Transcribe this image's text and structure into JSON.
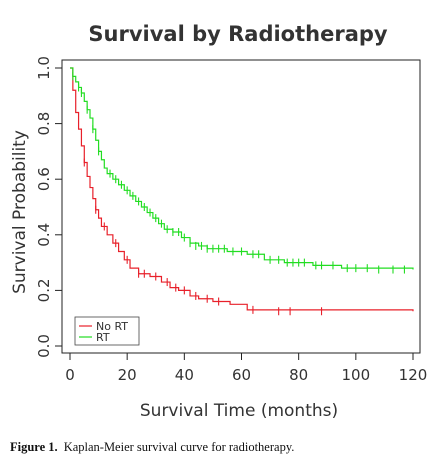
{
  "chart_data": {
    "type": "line",
    "title": "Survival by Radiotherapy",
    "xlabel": "Survival Time (months)",
    "ylabel": "Survival Probability",
    "xlim": [
      0,
      120
    ],
    "ylim": [
      0,
      1.0
    ],
    "x_ticks": [
      "0",
      "20",
      "40",
      "60",
      "80",
      "100",
      "120"
    ],
    "y_ticks": [
      "0.0",
      "0.2",
      "0.4",
      "0.6",
      "0.8",
      "1.0"
    ],
    "grid": false,
    "legend_position": "bottom-left",
    "series": [
      {
        "name": "No RT",
        "color": "#e8202a",
        "steps": [
          [
            0,
            1.0
          ],
          [
            1,
            0.92
          ],
          [
            2,
            0.84
          ],
          [
            3,
            0.78
          ],
          [
            4,
            0.72
          ],
          [
            5,
            0.66
          ],
          [
            6,
            0.61
          ],
          [
            7,
            0.57
          ],
          [
            8,
            0.53
          ],
          [
            9,
            0.49
          ],
          [
            10,
            0.46
          ],
          [
            11,
            0.43
          ],
          [
            13,
            0.4
          ],
          [
            15,
            0.37
          ],
          [
            17,
            0.34
          ],
          [
            19,
            0.31
          ],
          [
            21,
            0.28
          ],
          [
            24,
            0.26
          ],
          [
            28,
            0.25
          ],
          [
            32,
            0.23
          ],
          [
            35,
            0.21
          ],
          [
            38,
            0.2
          ],
          [
            42,
            0.18
          ],
          [
            45,
            0.17
          ],
          [
            50,
            0.16
          ],
          [
            56,
            0.15
          ],
          [
            62,
            0.13
          ],
          [
            120,
            0.125
          ]
        ],
        "censor": [
          [
            5,
            0.66
          ],
          [
            9,
            0.49
          ],
          [
            12,
            0.43
          ],
          [
            16,
            0.37
          ],
          [
            20,
            0.31
          ],
          [
            24,
            0.26
          ],
          [
            26,
            0.26
          ],
          [
            30,
            0.25
          ],
          [
            34,
            0.23
          ],
          [
            37,
            0.21
          ],
          [
            40,
            0.2
          ],
          [
            44,
            0.18
          ],
          [
            48,
            0.17
          ],
          [
            52,
            0.16
          ],
          [
            64,
            0.13
          ],
          [
            73,
            0.125
          ],
          [
            77,
            0.125
          ],
          [
            88,
            0.125
          ]
        ]
      },
      {
        "name": "RT",
        "color": "#22dd22",
        "steps": [
          [
            0,
            1.0
          ],
          [
            1,
            0.97
          ],
          [
            2,
            0.95
          ],
          [
            3,
            0.93
          ],
          [
            4,
            0.91
          ],
          [
            5,
            0.88
          ],
          [
            6,
            0.85
          ],
          [
            7,
            0.82
          ],
          [
            8,
            0.78
          ],
          [
            9,
            0.74
          ],
          [
            10,
            0.7
          ],
          [
            11,
            0.67
          ],
          [
            12,
            0.64
          ],
          [
            13,
            0.62
          ],
          [
            15,
            0.6
          ],
          [
            17,
            0.58
          ],
          [
            19,
            0.56
          ],
          [
            21,
            0.54
          ],
          [
            23,
            0.52
          ],
          [
            25,
            0.5
          ],
          [
            27,
            0.48
          ],
          [
            29,
            0.46
          ],
          [
            31,
            0.44
          ],
          [
            33,
            0.42
          ],
          [
            36,
            0.41
          ],
          [
            39,
            0.39
          ],
          [
            42,
            0.37
          ],
          [
            45,
            0.36
          ],
          [
            48,
            0.35
          ],
          [
            55,
            0.34
          ],
          [
            62,
            0.33
          ],
          [
            68,
            0.31
          ],
          [
            75,
            0.3
          ],
          [
            85,
            0.29
          ],
          [
            95,
            0.28
          ],
          [
            120,
            0.275
          ]
        ],
        "censor": [
          [
            1,
            0.97
          ],
          [
            3,
            0.93
          ],
          [
            4,
            0.91
          ],
          [
            6,
            0.85
          ],
          [
            8,
            0.78
          ],
          [
            10,
            0.7
          ],
          [
            14,
            0.62
          ],
          [
            16,
            0.6
          ],
          [
            18,
            0.58
          ],
          [
            20,
            0.56
          ],
          [
            22,
            0.54
          ],
          [
            24,
            0.52
          ],
          [
            26,
            0.5
          ],
          [
            28,
            0.48
          ],
          [
            30,
            0.46
          ],
          [
            32,
            0.44
          ],
          [
            34,
            0.42
          ],
          [
            36,
            0.41
          ],
          [
            38,
            0.41
          ],
          [
            40,
            0.39
          ],
          [
            42,
            0.37
          ],
          [
            44,
            0.36
          ],
          [
            46,
            0.36
          ],
          [
            48,
            0.35
          ],
          [
            50,
            0.35
          ],
          [
            52,
            0.35
          ],
          [
            54,
            0.35
          ],
          [
            57,
            0.34
          ],
          [
            60,
            0.34
          ],
          [
            64,
            0.33
          ],
          [
            66,
            0.33
          ],
          [
            70,
            0.31
          ],
          [
            73,
            0.31
          ],
          [
            76,
            0.3
          ],
          [
            78,
            0.3
          ],
          [
            80,
            0.3
          ],
          [
            82,
            0.3
          ],
          [
            86,
            0.29
          ],
          [
            88,
            0.29
          ],
          [
            92,
            0.29
          ],
          [
            97,
            0.28
          ],
          [
            100,
            0.28
          ],
          [
            104,
            0.28
          ],
          [
            108,
            0.275
          ],
          [
            113,
            0.275
          ],
          [
            117,
            0.275
          ]
        ]
      }
    ]
  },
  "caption": {
    "label": "Figure 1.",
    "text": "Kaplan-Meier survival curve for radiotherapy."
  }
}
